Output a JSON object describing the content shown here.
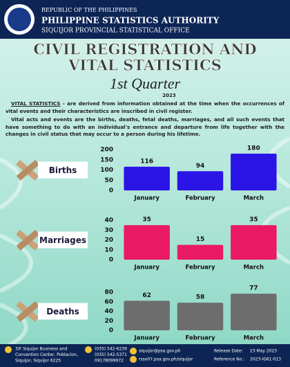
{
  "header": {
    "country": "REPUBLIC OF THE PHILIPPINES",
    "agency": "PHILIPPINE STATISTICS AUTHORITY",
    "office": "SIQUIJOR PROVINCIAL STATISTICAL OFFICE"
  },
  "title": {
    "line1": "CIVIL REGISTRATION AND",
    "line2": "VITAL STATISTICS",
    "period": "1st Quarter",
    "year": "2023"
  },
  "intro": {
    "term": "VITAL STATISTICS",
    "definition": " -  are derived from information obtained at the time when the occurrences of vital events and their characteristics are inscribed in civil register.",
    "paragraph2": "Vital acts and events are the births, deaths, fetal deaths, marriages, and all such events that have something to do with an individual's entrance and departure from life together with the changes in civil status that may occur to a person during his lifetime."
  },
  "chart_data": [
    {
      "type": "bar",
      "title": "Births",
      "categories": [
        "January",
        "February",
        "March"
      ],
      "values": [
        116,
        94,
        180
      ],
      "color": "#2b14e6",
      "ylim": [
        0,
        200
      ],
      "yticks": [
        0,
        50,
        100,
        150,
        200
      ],
      "grid": false
    },
    {
      "type": "bar",
      "title": "Marriages",
      "categories": [
        "January",
        "February",
        "March"
      ],
      "values": [
        35,
        15,
        35
      ],
      "color": "#ea1a62",
      "ylim": [
        0,
        40
      ],
      "yticks": [
        0,
        10,
        20,
        30,
        40
      ],
      "grid": false
    },
    {
      "type": "bar",
      "title": "Deaths",
      "categories": [
        "January",
        "February",
        "March"
      ],
      "values": [
        62,
        58,
        77
      ],
      "color": "#6d6d6d",
      "ylim": [
        0,
        80
      ],
      "yticks": [
        0,
        20,
        40,
        60,
        80
      ],
      "grid": false
    }
  ],
  "footer": {
    "address": [
      "3/F Siquijor Business and",
      "Convention Center, Poblacion,",
      "Siquijor, Siquijor 6225"
    ],
    "phones": [
      "(035) 542-6239",
      "(035) 542-5371",
      "09178099972"
    ],
    "email": "siquijor@psa.gov.ph",
    "website": "rsso07.psa.gov.ph/siquijor",
    "release_label": "Release Date:",
    "release_date": "23 May 2023",
    "reference_label": "Reference No.:",
    "reference_no": "2023-IG61-013"
  }
}
